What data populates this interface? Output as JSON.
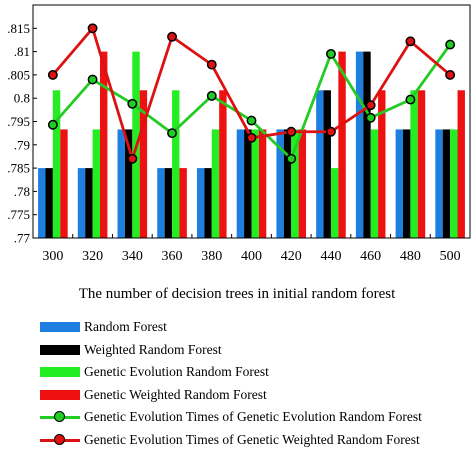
{
  "chart_data": {
    "type": "bar",
    "xlabel": "The number of decision trees in initial random forest",
    "ylabel": "",
    "categories": [
      "300",
      "320",
      "340",
      "360",
      "380",
      "400",
      "420",
      "440",
      "460",
      "480",
      "500"
    ],
    "ylim": [
      0.77,
      0.82
    ],
    "yticks": [
      0.77,
      0.775,
      0.78,
      0.785,
      0.79,
      0.795,
      0.8,
      0.805,
      0.81,
      0.815
    ],
    "ytick_labels": [
      ".77",
      ".775",
      ".78",
      ".785",
      ".79",
      ".795",
      "0.8",
      ".805",
      ".81",
      ".815"
    ],
    "grid": false,
    "legend_position": "bottom",
    "series": [
      {
        "name": "Random Forest",
        "kind": "bar",
        "color": "#1f7fe0",
        "values": [
          0.785,
          0.785,
          0.7933,
          0.785,
          0.785,
          0.7933,
          0.7933,
          0.8017,
          0.81,
          0.7933,
          0.7933
        ]
      },
      {
        "name": "Weighted Random Forest",
        "kind": "bar",
        "color": "#000000",
        "values": [
          0.785,
          0.785,
          0.7933,
          0.785,
          0.785,
          0.7933,
          0.7933,
          0.8017,
          0.81,
          0.7933,
          0.7933
        ]
      },
      {
        "name": "Genetic Evolution Random Forest",
        "kind": "bar",
        "color": "#22ee22",
        "values": [
          0.8017,
          0.7933,
          0.81,
          0.8017,
          0.7933,
          0.7933,
          0.7933,
          0.785,
          0.7933,
          0.8017,
          0.7933
        ]
      },
      {
        "name": "Genetic Weighted Random Forest",
        "kind": "bar",
        "color": "#ee1111",
        "values": [
          0.7933,
          0.81,
          0.8017,
          0.785,
          0.8017,
          0.7933,
          0.7933,
          0.81,
          0.8017,
          0.8017,
          0.8017
        ]
      },
      {
        "name": "Genetic Evolution Times of Genetic Evolution Random Forest",
        "kind": "line",
        "color": "#22cc22",
        "values": [
          0.7943,
          0.804,
          0.7988,
          0.7925,
          0.8005,
          0.7952,
          0.787,
          0.8095,
          0.7958,
          0.7997,
          0.8115
        ]
      },
      {
        "name": "Genetic Evolution Times of Genetic Weighted Random Forest",
        "kind": "line",
        "color": "#dd1111",
        "values": [
          0.805,
          0.815,
          0.787,
          0.8132,
          0.8072,
          0.7915,
          0.7928,
          0.7928,
          0.7985,
          0.8122,
          0.805
        ]
      }
    ]
  },
  "colors": {
    "random_forest": "#1f7fe0",
    "weighted_random_forest": "#000000",
    "genetic_evolution_rf": "#22ee22",
    "genetic_weighted_rf": "#ee1111",
    "line_green": "#22cc22",
    "line_red": "#dd1111"
  }
}
